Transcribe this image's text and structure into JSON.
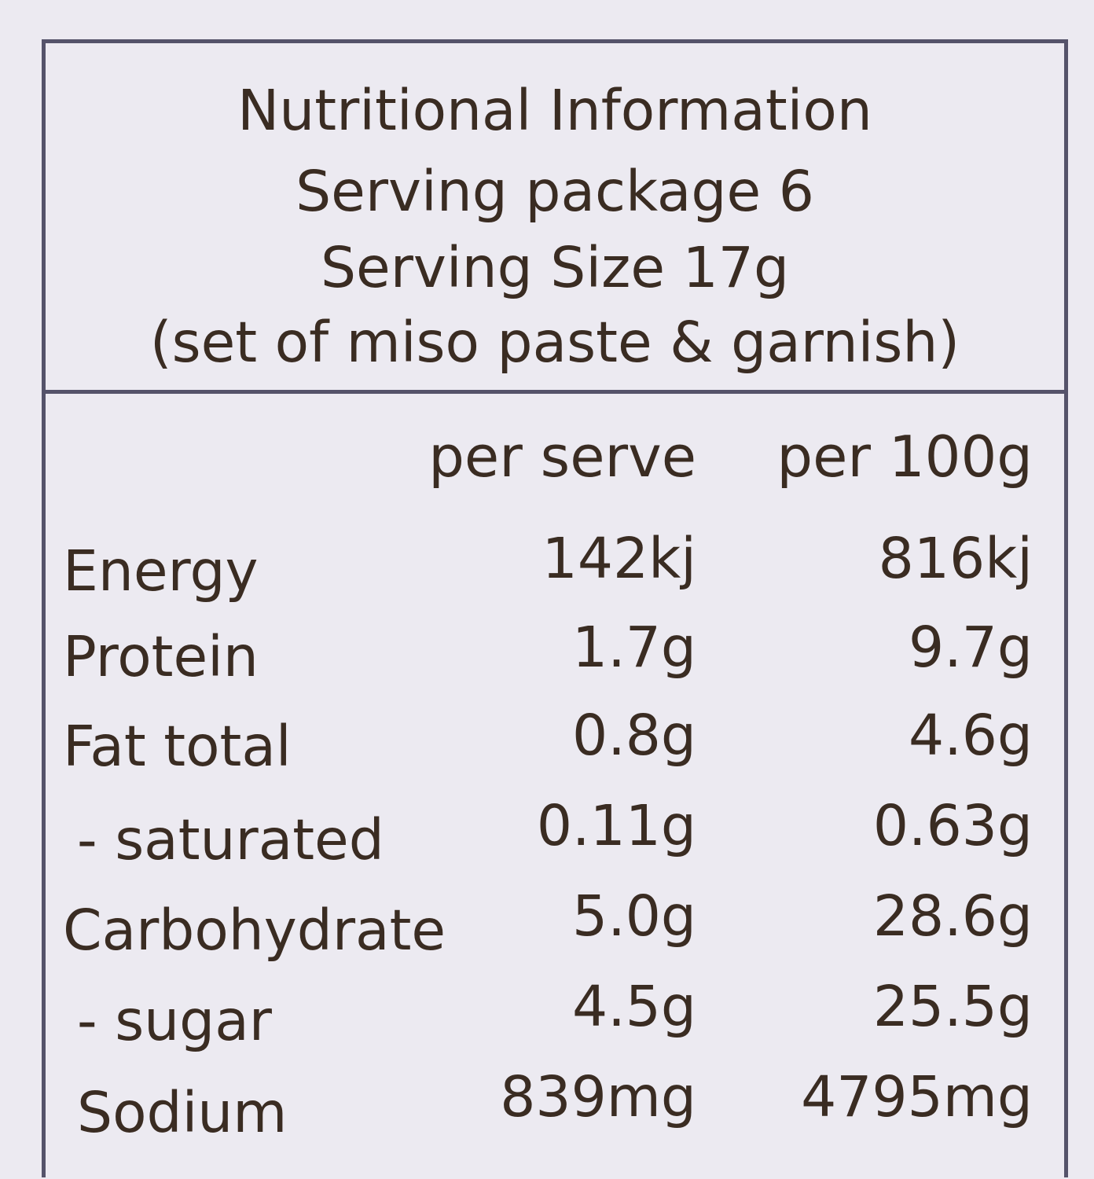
{
  "header": {
    "title": "Nutritional Information",
    "servings": "Serving package 6",
    "serving_size": "Serving Size 17g",
    "note": "(set of miso paste & garnish)"
  },
  "table": {
    "columns": [
      "per serve",
      "per 100g"
    ],
    "rows": [
      {
        "name": "Energy",
        "per_serve": "142kj",
        "per_100g": "816kj"
      },
      {
        "name": "Protein",
        "per_serve": "1.7g",
        "per_100g": "9.7g"
      },
      {
        "name": "Fat total",
        "per_serve": "0.8g",
        "per_100g": "4.6g"
      },
      {
        "name": "- saturated",
        "per_serve": "0.11g",
        "per_100g": "0.63g"
      },
      {
        "name": "Carbohydrate",
        "per_serve": "5.0g",
        "per_100g": "28.6g"
      },
      {
        "name": "- sugar",
        "per_serve": "4.5g",
        "per_100g": "25.5g"
      },
      {
        "name": "Sodium",
        "per_serve": "839mg",
        "per_100g": "4795mg"
      }
    ]
  },
  "colors": {
    "background": "#eceaf1",
    "text": "#3a2c22",
    "border": "#55536a"
  }
}
